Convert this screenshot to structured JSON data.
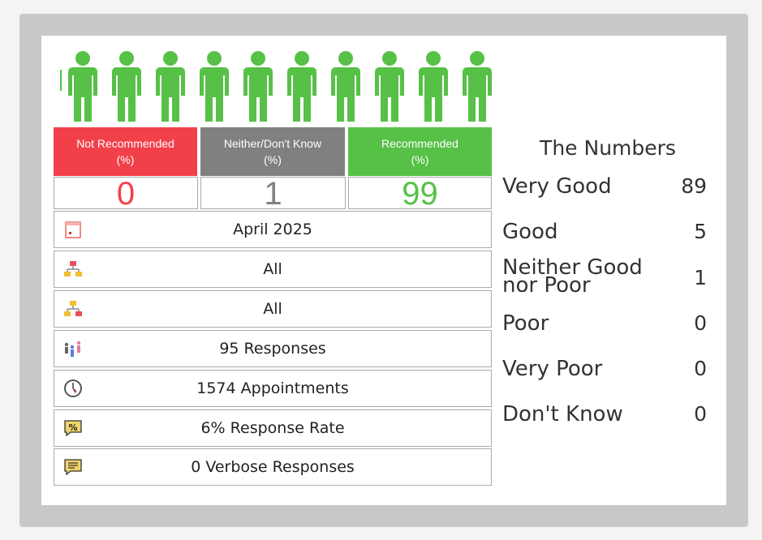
{
  "icons": {
    "person": "person-icon",
    "calendar": "calendar-icon",
    "org": "org-chart-icon",
    "people": "people-icon",
    "clock": "clock-icon",
    "percent": "percent-tag-icon",
    "message": "message-icon"
  },
  "colors": {
    "not_recommended": "#f2404a",
    "neither": "#808080",
    "recommended": "#56c146",
    "person": "#56c146"
  },
  "recommendation": {
    "not_recommended": {
      "label_line1": "Not Recommended",
      "label_line2": "(%)",
      "value": "0"
    },
    "neither": {
      "label_line1": "Neither/Don't Know",
      "label_line2": "(%)",
      "value": "1"
    },
    "recommended": {
      "label_line1": "Recommended",
      "label_line2": "(%)",
      "value": "99"
    }
  },
  "info_rows": [
    {
      "text": "April 2025"
    },
    {
      "text": "All"
    },
    {
      "text": "All"
    },
    {
      "text": "95 Responses"
    },
    {
      "text": "1574 Appointments"
    },
    {
      "text": "6% Response Rate"
    },
    {
      "text": "0 Verbose Responses"
    }
  ],
  "numbers": {
    "title": "The Numbers",
    "items": [
      {
        "label": "Very Good",
        "value": "89"
      },
      {
        "label": "Good",
        "value": "5"
      },
      {
        "label_line1": "Neither Good",
        "label_line2": "nor Poor",
        "value": "1"
      },
      {
        "label": "Poor",
        "value": "0"
      },
      {
        "label": "Very Poor",
        "value": "0"
      },
      {
        "label": "Don't Know",
        "value": "0"
      }
    ]
  }
}
